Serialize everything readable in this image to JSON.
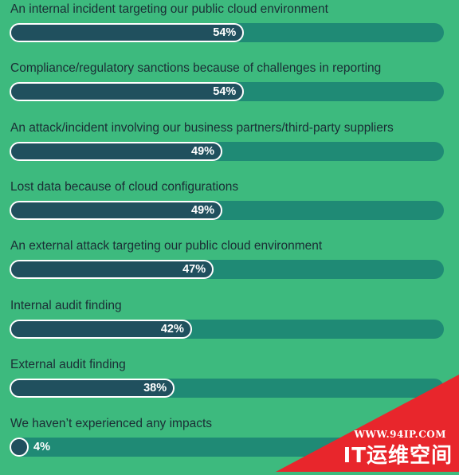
{
  "chart_data": {
    "type": "bar",
    "orientation": "horizontal",
    "xlim": [
      0,
      100
    ],
    "categories": [
      "An internal incident targeting our public cloud environment",
      "Compliance/regulatory sanctions because of challenges in reporting",
      "An attack/incident involving our business partners/third-party suppliers",
      "Lost data because of cloud configurations",
      "An external attack targeting our public cloud environment",
      "Internal audit finding",
      "External audit finding",
      "We haven’t experienced any impacts"
    ],
    "values": [
      54,
      54,
      49,
      49,
      47,
      42,
      38,
      4
    ],
    "value_labels": [
      "54%",
      "54%",
      "49%",
      "49%",
      "47%",
      "42%",
      "38%",
      "4%"
    ],
    "colors": {
      "background": "#3dba7e",
      "track": "#1f8a75",
      "fill": "#20505e",
      "outline": "#ffffff",
      "label": "#1b2d35"
    }
  },
  "watermark": {
    "url": "WWW.94IP.COM",
    "name": "IT运维空间",
    "color": "#e8262c"
  }
}
